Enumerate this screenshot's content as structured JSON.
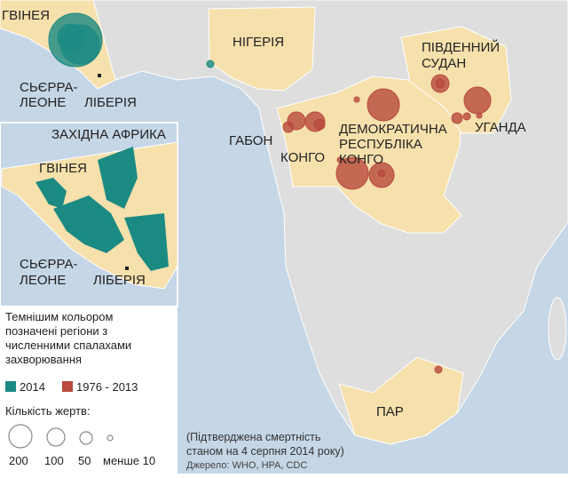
{
  "map": {
    "labels": {
      "guinea": "ГВІНЕЯ",
      "sierra_leone": [
        "СЬЄРРА-",
        "ЛЕОНЕ"
      ],
      "liberia": "ЛІБЕРІЯ",
      "nigeria": "НІГЕРІЯ",
      "south_sudan": [
        "ПІВДЕННИЙ",
        "СУДАН"
      ],
      "uganda": "УГАНДА",
      "gabon": "ГАБОН",
      "congo": "КОНГО",
      "drc": [
        "ДЕМОКРАТИЧНА",
        "РЕСПУБЛІКА",
        "КОНГО"
      ],
      "south_africa": "ПАР"
    },
    "inset": {
      "title": "ЗАХІДНА АФРИКА",
      "guinea": "ГВІНЕЯ",
      "sierra_leone": [
        "СЬЄРРА-",
        "ЛЕОНЕ"
      ],
      "liberia": "ЛІБЕРІЯ"
    },
    "note": [
      "(Підтверджена смертність",
      "станом на 4 серпня 2014 року)"
    ],
    "source": "Джерело: WHO, HPA, CDC"
  },
  "legend": {
    "description": [
      "Темнішим кольором",
      "позначені регіони з",
      "численними спалахами",
      "захворювання"
    ],
    "periods": [
      {
        "label": "2014",
        "color": "#1b8a83"
      },
      {
        "label": "1976 - 2013",
        "color": "#b84a3e"
      }
    ],
    "size_title": "Кількість жертв:",
    "sizes": [
      "200",
      "100",
      "50",
      "менше 10"
    ]
  }
}
